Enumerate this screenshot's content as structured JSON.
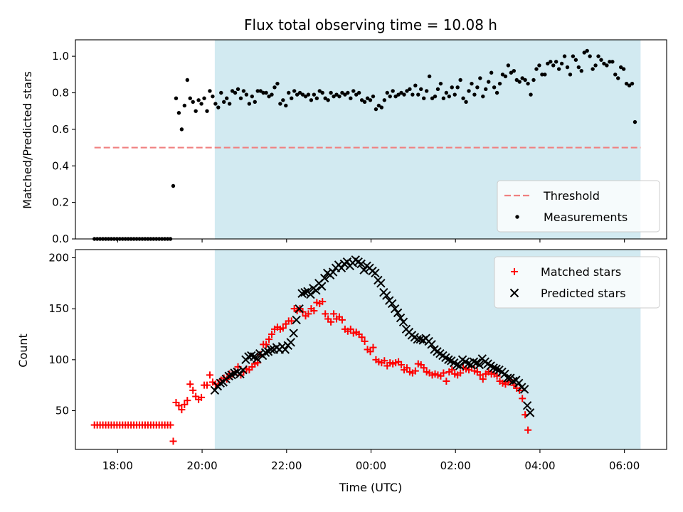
{
  "figure": {
    "title": "Flux total observing time = 10.08 h",
    "xlabel": "Time (UTC)",
    "colors": {
      "observing_window": "#add8e6",
      "threshold": "#f08080",
      "measurements": "#000000",
      "matched": "#ff0000",
      "predicted": "#000000"
    }
  },
  "chart_data": [
    {
      "type": "scatter",
      "panel": "top",
      "ylabel": "Matched/Predicted stars",
      "xlim": [
        "17:00",
        "07:00"
      ],
      "ylim": [
        0,
        1.09
      ],
      "x_ticks": [
        "18:00",
        "20:00",
        "22:00",
        "00:00",
        "02:00",
        "04:00",
        "06:00"
      ],
      "x_ticks_labeled": false,
      "y_ticks": [
        "0.0",
        "0.2",
        "0.4",
        "0.6",
        "0.8",
        "1.0"
      ],
      "observing_window": [
        "20:18",
        "06:23"
      ],
      "threshold": {
        "name": "Threshold",
        "value": 0.5,
        "x_range": [
          "17:27",
          "06:23"
        ]
      },
      "legend": {
        "placement": "lower-right",
        "entries": [
          "Threshold",
          "Measurements"
        ]
      },
      "series": [
        {
          "name": "Measurements",
          "marker": "dot",
          "x_start": "17:27",
          "x_step_minutes": 4,
          "values": [
            0,
            0,
            0,
            0,
            0,
            0,
            0,
            0,
            0,
            0,
            0,
            0,
            0,
            0,
            0,
            0,
            0,
            0,
            0,
            0,
            0,
            0,
            0,
            0,
            0,
            0,
            0,
            0,
            0.29,
            0.77,
            0.69,
            0.6,
            0.73,
            0.87,
            0.77,
            0.75,
            0.7,
            0.76,
            0.74,
            0.77,
            0.7,
            0.81,
            0.78,
            0.74,
            0.72,
            0.8,
            0.75,
            0.77,
            0.74,
            0.81,
            0.8,
            0.82,
            0.77,
            0.81,
            0.79,
            0.74,
            0.78,
            0.75,
            0.81,
            0.81,
            0.8,
            0.8,
            0.78,
            0.79,
            0.83,
            0.85,
            0.74,
            0.76,
            0.73,
            0.8,
            0.77,
            0.81,
            0.79,
            0.8,
            0.79,
            0.78,
            0.79,
            0.76,
            0.79,
            0.77,
            0.81,
            0.8,
            0.77,
            0.76,
            0.8,
            0.78,
            0.79,
            0.78,
            0.8,
            0.79,
            0.8,
            0.77,
            0.81,
            0.79,
            0.8,
            0.76,
            0.75,
            0.77,
            0.76,
            0.78,
            0.71,
            0.73,
            0.72,
            0.76,
            0.8,
            0.78,
            0.81,
            0.78,
            0.79,
            0.8,
            0.79,
            0.81,
            0.82,
            0.79,
            0.84,
            0.79,
            0.82,
            0.77,
            0.81,
            0.89,
            0.77,
            0.78,
            0.82,
            0.85,
            0.77,
            0.8,
            0.78,
            0.83,
            0.79,
            0.83,
            0.87,
            0.77,
            0.75,
            0.81,
            0.85,
            0.79,
            0.83,
            0.88,
            0.78,
            0.82,
            0.86,
            0.91,
            0.83,
            0.8,
            0.85,
            0.9,
            0.89,
            0.95,
            0.91,
            0.92,
            0.87,
            0.86,
            0.88,
            0.87,
            0.85,
            0.79,
            0.87,
            0.93,
            0.95,
            0.9,
            0.9,
            0.96,
            0.97,
            0.95,
            0.97,
            0.93,
            0.96,
            1.0,
            0.94,
            0.9,
            1.0,
            0.98,
            0.94,
            0.92,
            1.02,
            1.03,
            1.0,
            0.93,
            0.95,
            1.0,
            0.98,
            0.96,
            0.95,
            0.97,
            0.97,
            0.9,
            0.88,
            0.94,
            0.93,
            0.85,
            0.84,
            0.85,
            0.64
          ]
        }
      ]
    },
    {
      "type": "scatter",
      "panel": "bottom",
      "ylabel": "Count",
      "xlabel": "Time (UTC)",
      "xlim": [
        "17:00",
        "07:00"
      ],
      "ylim": [
        12,
        208
      ],
      "x_ticks": [
        "18:00",
        "20:00",
        "22:00",
        "00:00",
        "02:00",
        "04:00",
        "06:00"
      ],
      "y_ticks": [
        "50",
        "100",
        "150",
        "200"
      ],
      "observing_window": [
        "20:18",
        "06:23"
      ],
      "legend": {
        "placement": "top-right",
        "entries": [
          "Matched stars",
          "Predicted stars"
        ]
      },
      "series": [
        {
          "name": "Matched stars",
          "marker": "plus",
          "x_start": "17:27",
          "x_step_minutes": 4,
          "values": [
            36,
            36,
            36,
            36,
            36,
            36,
            36,
            36,
            36,
            36,
            36,
            36,
            36,
            36,
            36,
            36,
            36,
            36,
            36,
            36,
            36,
            36,
            36,
            36,
            36,
            36,
            36,
            36,
            20,
            58,
            55,
            51,
            56,
            60,
            76,
            70,
            64,
            61,
            63,
            75,
            75,
            85,
            78,
            76,
            76,
            80,
            82,
            81,
            86,
            86,
            88,
            93,
            85,
            88,
            91,
            90,
            93,
            96,
            97,
            105,
            115,
            115,
            120,
            125,
            130,
            132,
            130,
            131,
            135,
            138,
            138,
            150,
            148,
            150,
            147,
            143,
            145,
            150,
            148,
            156,
            155,
            157,
            145,
            140,
            137,
            145,
            140,
            142,
            139,
            130,
            128,
            130,
            126,
            127,
            125,
            122,
            118,
            110,
            108,
            112,
            100,
            98,
            97,
            99,
            94,
            97,
            96,
            97,
            98,
            95,
            90,
            92,
            88,
            87,
            89,
            96,
            95,
            92,
            88,
            87,
            85,
            86,
            85,
            84,
            87,
            79,
            88,
            90,
            86,
            85,
            87,
            92,
            91,
            90,
            93,
            89,
            88,
            85,
            81,
            86,
            88,
            86,
            86,
            84,
            79,
            77,
            76,
            78,
            80,
            75,
            72,
            70,
            62,
            46,
            31
          ]
        },
        {
          "name": "Predicted stars",
          "marker": "x",
          "x_start": "20:18",
          "x_step_minutes": 4,
          "values": [
            70,
            74,
            77,
            78,
            81,
            84,
            85,
            87,
            88,
            86,
            90,
            100,
            103,
            104,
            103,
            101,
            106,
            104,
            107,
            108,
            110,
            110,
            112,
            110,
            113,
            110,
            114,
            117,
            126,
            139,
            150,
            165,
            166,
            167,
            164,
            170,
            168,
            175,
            172,
            180,
            185,
            183,
            186,
            190,
            193,
            190,
            194,
            196,
            192,
            195,
            198,
            196,
            194,
            188,
            192,
            190,
            187,
            185,
            178,
            175,
            166,
            163,
            158,
            155,
            150,
            146,
            141,
            137,
            130,
            127,
            124,
            122,
            120,
            120,
            119,
            121,
            118,
            115,
            110,
            108,
            106,
            104,
            102,
            100,
            99,
            97,
            95,
            94,
            100,
            98,
            96,
            95,
            98,
            97,
            95,
            101,
            98,
            96,
            94,
            92,
            91,
            90,
            88,
            86,
            82,
            82,
            79,
            80,
            77,
            73,
            71,
            55,
            48
          ]
        }
      ]
    }
  ]
}
